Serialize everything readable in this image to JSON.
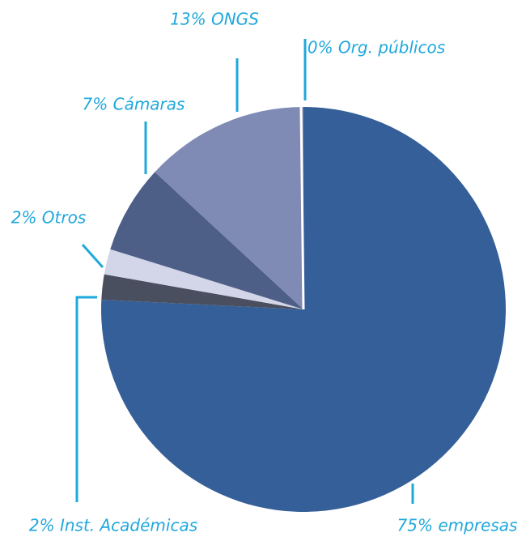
{
  "chart_data": {
    "type": "pie",
    "values": [
      75,
      2,
      2,
      7,
      13,
      0
    ],
    "value_labels": [
      "75% empresas",
      "2% Inst. Académicas",
      "2% Otros",
      "7% Cámaras",
      "13% ONGS",
      "0% Org. públicos"
    ],
    "colors": [
      "#355f98",
      "#4a4f5f",
      "#d3d5e8",
      "#4e5f87",
      "#7f8ab5",
      "#ffffff"
    ],
    "label_color": "#1fa8dc"
  }
}
